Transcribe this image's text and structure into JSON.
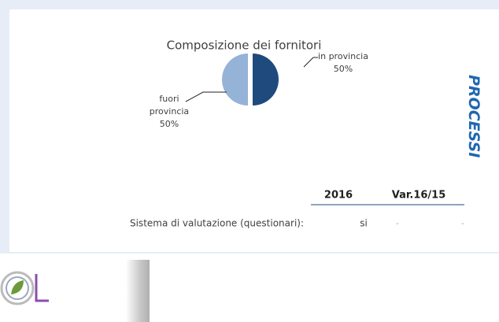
{
  "chart_data": {
    "type": "pie",
    "title": "Composizione dei fornitori",
    "categories": [
      "in provincia",
      "fuori provincia"
    ],
    "values": [
      50,
      50
    ],
    "value_labels": [
      "50%",
      "50%"
    ],
    "colors": [
      "#1f4a7e",
      "#95b3d7"
    ]
  },
  "section": "PROCESSI",
  "table": {
    "headers": [
      "2016",
      "Var.16/15"
    ],
    "rows": [
      [
        "Sistema di valutazione (questionari):",
        "si",
        "-",
        "-"
      ]
    ]
  }
}
